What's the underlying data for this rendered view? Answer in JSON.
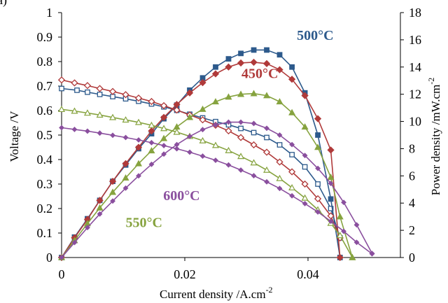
{
  "panel_label": "a)",
  "chart_data": {
    "type": "line",
    "xlabel": "Current density /A.cm",
    "xlabel_sup": "-2",
    "ylabel": "Voltage /V",
    "y2label": "Power density /mW.cm",
    "y2label_sup": "-2",
    "xlim": [
      0,
      0.055
    ],
    "ylim": [
      0,
      1
    ],
    "y2lim": [
      0,
      18
    ],
    "xticks": [
      0,
      0.02,
      0.04
    ],
    "xtick_labels": [
      "0",
      "0.02",
      "0.04"
    ],
    "yticks": [
      0,
      0.1,
      0.2,
      0.3,
      0.4,
      0.5,
      0.6,
      0.7,
      0.8,
      0.9,
      1
    ],
    "ytick_labels": [
      "0",
      "0.1",
      "0.2",
      "0.3",
      "0.4",
      "0.5",
      "0.6",
      "0.7",
      "0.8",
      "0.9",
      "1"
    ],
    "y2ticks": [
      0,
      2,
      4,
      6,
      8,
      10,
      12,
      14,
      16,
      18
    ],
    "y2tick_labels": [
      "0",
      "2",
      "4",
      "6",
      "8",
      "10",
      "12",
      "14",
      "16",
      "18"
    ],
    "grid": false,
    "series": [
      {
        "name": "500°C",
        "color": "#2d5a8c",
        "axis": "voltage",
        "marker": "square-open",
        "x": [
          0,
          0.0025,
          0.0042,
          0.0062,
          0.0083,
          0.0104,
          0.0125,
          0.0146,
          0.0166,
          0.0187,
          0.0208,
          0.0229,
          0.025,
          0.0271,
          0.0291,
          0.0312,
          0.0333,
          0.0354,
          0.0374,
          0.0395,
          0.0416,
          0.0437,
          0.0452
        ],
        "y": [
          0.69,
          0.683,
          0.675,
          0.666,
          0.657,
          0.648,
          0.638,
          0.627,
          0.615,
          0.601,
          0.585,
          0.57,
          0.555,
          0.542,
          0.527,
          0.51,
          0.49,
          0.46,
          0.42,
          0.37,
          0.3,
          0.2,
          0.08
        ]
      },
      {
        "name": "500°C",
        "color": "#2d5a8c",
        "axis": "power",
        "marker": "square-filled",
        "x": [
          0,
          0.0021,
          0.0042,
          0.0062,
          0.0083,
          0.0104,
          0.0125,
          0.0146,
          0.0166,
          0.0187,
          0.0208,
          0.0229,
          0.025,
          0.0271,
          0.0291,
          0.0312,
          0.0333,
          0.0354,
          0.0374,
          0.0395,
          0.0416,
          0.0437,
          0.0452
        ],
        "y": [
          0,
          1.5,
          2.85,
          4.2,
          5.6,
          6.8,
          8.0,
          9.1,
          10.2,
          11.2,
          12.3,
          13.2,
          14.0,
          14.6,
          15.0,
          15.25,
          15.25,
          14.9,
          14.0,
          12.1,
          9.0,
          4.3,
          0
        ]
      },
      {
        "name": "450°C",
        "color": "#b03a3a",
        "axis": "voltage",
        "marker": "diamond-open",
        "x": [
          0,
          0.0021,
          0.0042,
          0.0062,
          0.0083,
          0.0104,
          0.0125,
          0.0146,
          0.0166,
          0.0187,
          0.0208,
          0.0229,
          0.025,
          0.0271,
          0.0291,
          0.0312,
          0.0333,
          0.0354,
          0.0374,
          0.0395,
          0.0416,
          0.0437,
          0.0452
        ],
        "y": [
          0.725,
          0.713,
          0.702,
          0.69,
          0.678,
          0.665,
          0.651,
          0.637,
          0.62,
          0.602,
          0.582,
          0.562,
          0.54,
          0.517,
          0.49,
          0.46,
          0.43,
          0.39,
          0.35,
          0.3,
          0.24,
          0.17,
          0.08
        ]
      },
      {
        "name": "450°C",
        "color": "#b03a3a",
        "axis": "power",
        "marker": "diamond-filled",
        "x": [
          0,
          0.0021,
          0.0042,
          0.0062,
          0.0083,
          0.0104,
          0.0125,
          0.0146,
          0.0166,
          0.0187,
          0.0208,
          0.0229,
          0.025,
          0.0271,
          0.0291,
          0.0312,
          0.0333,
          0.0354,
          0.0374,
          0.0395,
          0.0416,
          0.0437,
          0.0452
        ],
        "y": [
          0,
          1.45,
          2.8,
          4.2,
          5.6,
          6.9,
          8.1,
          9.3,
          10.3,
          11.25,
          12.1,
          12.85,
          13.5,
          14.0,
          14.3,
          14.35,
          14.25,
          13.8,
          13.1,
          11.9,
          10.2,
          7.9,
          0
        ]
      },
      {
        "name": "550°C",
        "color": "#86a33f",
        "axis": "voltage",
        "marker": "triangle-open",
        "x": [
          0,
          0.0021,
          0.0042,
          0.0062,
          0.0083,
          0.0104,
          0.0125,
          0.0146,
          0.0166,
          0.0187,
          0.0208,
          0.0229,
          0.025,
          0.0271,
          0.0291,
          0.0312,
          0.0333,
          0.0354,
          0.0374,
          0.0395,
          0.0416,
          0.0437,
          0.0452,
          0.0472
        ],
        "y": [
          0.605,
          0.598,
          0.59,
          0.582,
          0.572,
          0.562,
          0.552,
          0.54,
          0.527,
          0.512,
          0.495,
          0.477,
          0.458,
          0.437,
          0.413,
          0.387,
          0.357,
          0.323,
          0.285,
          0.243,
          0.195,
          0.14,
          0.09,
          0
        ]
      },
      {
        "name": "550°C",
        "color": "#86a33f",
        "axis": "power",
        "marker": "triangle-filled",
        "x": [
          0,
          0.0021,
          0.0042,
          0.0062,
          0.0083,
          0.0104,
          0.0125,
          0.0146,
          0.0166,
          0.0187,
          0.0208,
          0.0229,
          0.025,
          0.0271,
          0.0291,
          0.0312,
          0.0333,
          0.0354,
          0.0374,
          0.0395,
          0.0416,
          0.0437,
          0.0452,
          0.0472
        ],
        "y": [
          0,
          1.25,
          2.5,
          3.65,
          4.8,
          5.85,
          6.9,
          7.85,
          8.75,
          9.6,
          10.3,
          10.9,
          11.45,
          11.8,
          12.0,
          12.05,
          11.9,
          11.45,
          10.65,
          9.6,
          8.1,
          5.9,
          3.0,
          0
        ]
      },
      {
        "name": "600°C",
        "color": "#8a4f9e",
        "axis": "voltage",
        "marker": "diamond-small",
        "x": [
          0,
          0.0021,
          0.0042,
          0.0062,
          0.0083,
          0.0104,
          0.0125,
          0.0146,
          0.0166,
          0.0187,
          0.0208,
          0.0229,
          0.025,
          0.0271,
          0.0291,
          0.0312,
          0.0333,
          0.0354,
          0.0374,
          0.0395,
          0.0416,
          0.0437,
          0.0458,
          0.0479,
          0.0504
        ],
        "y": [
          0.53,
          0.523,
          0.516,
          0.508,
          0.499,
          0.49,
          0.48,
          0.469,
          0.457,
          0.444,
          0.43,
          0.414,
          0.397,
          0.378,
          0.357,
          0.334,
          0.309,
          0.282,
          0.252,
          0.22,
          0.186,
          0.148,
          0.107,
          0.062,
          0.015
        ]
      },
      {
        "name": "600°C",
        "color": "#8a4f9e",
        "axis": "power",
        "marker": "diamond-small",
        "x": [
          0,
          0.0021,
          0.0042,
          0.0062,
          0.0083,
          0.0104,
          0.0125,
          0.0146,
          0.0166,
          0.0187,
          0.0208,
          0.0229,
          0.025,
          0.0271,
          0.0291,
          0.0312,
          0.0333,
          0.0354,
          0.0374,
          0.0395,
          0.0416,
          0.0437,
          0.0458,
          0.0479,
          0.0504
        ],
        "y": [
          0,
          1.1,
          2.2,
          3.2,
          4.15,
          5.1,
          6.0,
          6.85,
          7.6,
          8.3,
          8.9,
          9.4,
          9.75,
          9.95,
          9.95,
          9.85,
          9.5,
          9.0,
          8.3,
          7.5,
          6.55,
          5.45,
          4.05,
          2.4,
          0.3
        ]
      }
    ],
    "annotations": [
      {
        "text": "500°C",
        "color": "#2d5a8c",
        "x": 0.0382,
        "y": 16.0,
        "axis": "power"
      },
      {
        "text": "450°C",
        "color": "#b03a3a",
        "x": 0.0292,
        "y": 13.2,
        "axis": "power"
      },
      {
        "text": "600°C",
        "color": "#8a4f9e",
        "x": 0.0165,
        "y": 0.235,
        "axis": "voltage"
      },
      {
        "text": "550°C",
        "color": "#86a33f",
        "x": 0.0104,
        "y": 0.125,
        "axis": "voltage"
      }
    ]
  }
}
